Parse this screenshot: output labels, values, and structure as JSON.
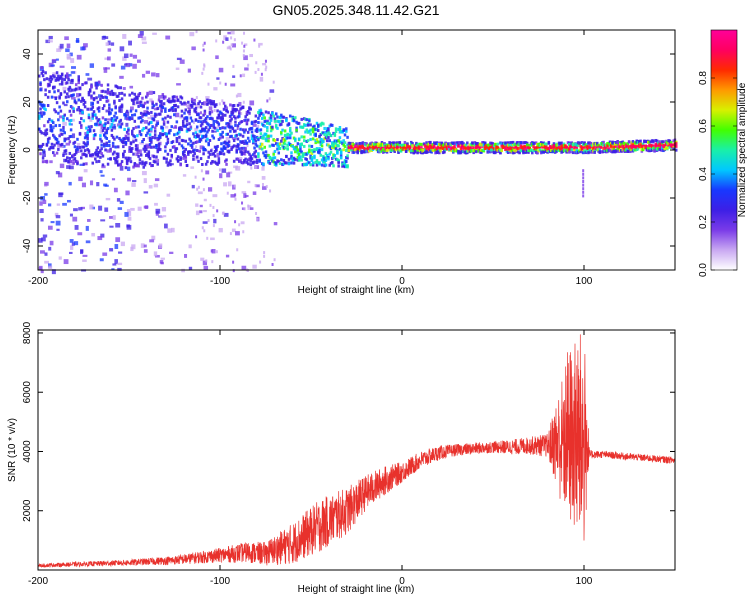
{
  "title": "GN05.2025.348.11.42.G21",
  "chart_data": [
    {
      "type": "heatmap",
      "xlabel": "Height of straight line (km)",
      "ylabel": "Frequency (Hz)",
      "xlim": [
        -200,
        150
      ],
      "ylim": [
        -50,
        50
      ],
      "xticks": [
        -200,
        -100,
        0,
        100
      ],
      "yticks": [
        -40,
        -20,
        0,
        20,
        40
      ],
      "xtick_labels": [
        "-200",
        "-100",
        "0",
        "100"
      ],
      "ytick_labels": [
        "-40",
        "-20",
        "0",
        "20",
        "40"
      ],
      "colorbar": {
        "label": "Normalized spectral amplitude",
        "range": [
          0,
          1
        ],
        "ticks": [
          0.0,
          0.2,
          0.4,
          0.6,
          0.8
        ],
        "tick_labels": [
          "0.0",
          "0.2",
          "0.4",
          "0.6",
          "0.8"
        ]
      },
      "band_center_hz": [
        {
          "x": -200,
          "y": 15
        },
        {
          "x": -175,
          "y": 12
        },
        {
          "x": -150,
          "y": 9
        },
        {
          "x": -125,
          "y": 8
        },
        {
          "x": -100,
          "y": 7
        },
        {
          "x": -75,
          "y": 5
        },
        {
          "x": -50,
          "y": 3
        },
        {
          "x": -30,
          "y": 1
        },
        {
          "x": 0,
          "y": 1
        },
        {
          "x": 50,
          "y": 1
        },
        {
          "x": 100,
          "y": 1
        },
        {
          "x": 150,
          "y": 2
        }
      ]
    },
    {
      "type": "line",
      "xlabel": "Height of straight line (km)",
      "ylabel": "SNR (10 * v/v)",
      "xlim": [
        -200,
        150
      ],
      "ylim": [
        0,
        8100
      ],
      "xticks": [
        -200,
        -100,
        0,
        100
      ],
      "yticks": [
        2000,
        4000,
        6000,
        8000
      ],
      "xtick_labels": [
        "-200",
        "-100",
        "0",
        "100"
      ],
      "ytick_labels": [
        "2000",
        "4000",
        "6000",
        "8000"
      ],
      "series": [
        {
          "name": "SNR",
          "color": "#e8312c",
          "x": [
            -200,
            -175,
            -150,
            -125,
            -100,
            -85,
            -75,
            -60,
            -45,
            -30,
            -20,
            -10,
            0,
            10,
            20,
            30,
            40,
            50,
            60,
            70,
            80,
            85,
            90,
            95,
            100,
            103,
            110,
            120,
            130,
            140,
            150
          ],
          "y": [
            150,
            200,
            250,
            330,
            500,
            600,
            550,
            900,
            1500,
            2000,
            2600,
            3000,
            3300,
            3700,
            3950,
            4050,
            4100,
            4150,
            4150,
            4200,
            4200,
            4300,
            4300,
            4100,
            4000,
            3900,
            3900,
            3850,
            3800,
            3750,
            3700
          ],
          "noise": [
            60,
            80,
            100,
            150,
            250,
            350,
            400,
            700,
            900,
            800,
            600,
            500,
            350,
            300,
            250,
            200,
            200,
            200,
            250,
            300,
            400,
            1500,
            2800,
            3400,
            3800,
            150,
            120,
            120,
            120,
            120,
            120
          ]
        }
      ]
    }
  ],
  "colors": {
    "colormap": [
      "#ffffff",
      "#c9a8f2",
      "#7a3be8",
      "#3d1fe6",
      "#1838ff",
      "#00c8ff",
      "#19f0a8",
      "#42ff00",
      "#d8f000",
      "#ff9900",
      "#ff2a00",
      "#ff0060",
      "#ff0099"
    ],
    "line": "#e8312c"
  }
}
